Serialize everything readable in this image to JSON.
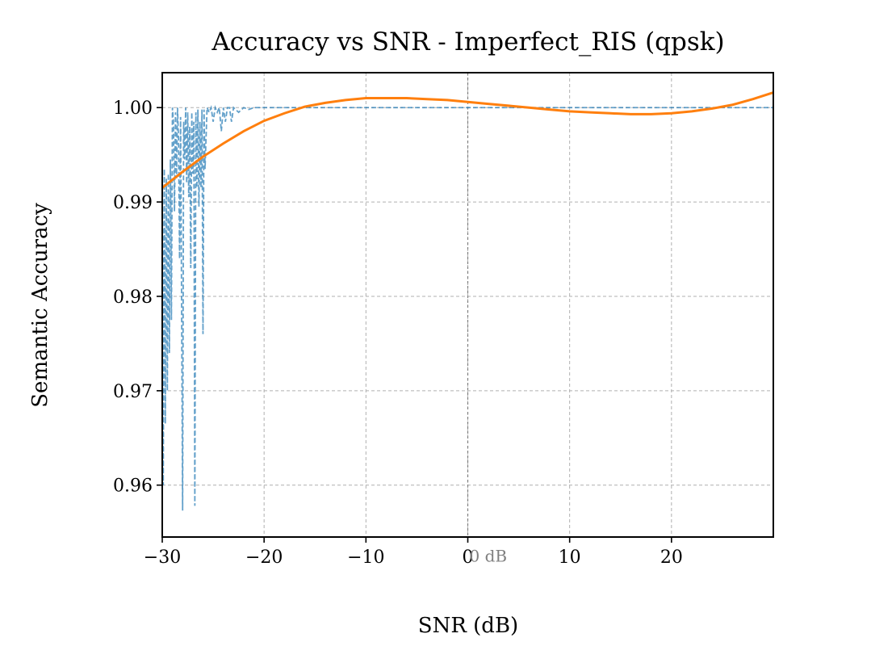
{
  "chart_data": {
    "type": "line",
    "title": "Accuracy vs SNR - Imperfect_RIS (qpsk)",
    "xlabel": "SNR (dB)",
    "ylabel": "Semantic Accuracy",
    "xlim": [
      -30,
      30
    ],
    "ylim": [
      0.9545,
      1.0037
    ],
    "x_ticks": [
      -30,
      -20,
      -10,
      0,
      10,
      20
    ],
    "x_tick_labels": [
      "−30",
      "−20",
      "−10",
      "0",
      "10",
      "20"
    ],
    "y_ticks": [
      0.96,
      0.97,
      0.98,
      0.99,
      1.0
    ],
    "y_tick_labels": [
      "0.96",
      "0.97",
      "0.98",
      "0.99",
      "1.00"
    ],
    "grid": true,
    "annotations": [
      {
        "text": "0 dB",
        "x": 0,
        "y": 0.9553
      }
    ],
    "vline": {
      "x": 0,
      "color": "#808080"
    },
    "colors": {
      "raw": "#1f77b4",
      "fit": "#ff7f0e"
    },
    "series": [
      {
        "style": "dashed",
        "color": "#1f77b4",
        "x": [
          -30,
          -29.9,
          -29.8,
          -29.7,
          -29.6,
          -29.5,
          -29.4,
          -29.3,
          -29.2,
          -29.1,
          -29.0,
          -28.9,
          -28.8,
          -28.7,
          -28.6,
          -28.5,
          -28.4,
          -28.3,
          -28.2,
          -28.1,
          -28.0,
          -27.9,
          -27.8,
          -27.7,
          -27.6,
          -27.5,
          -27.4,
          -27.3,
          -27.2,
          -27.1,
          -27.0,
          -26.9,
          -26.8,
          -26.7,
          -26.6,
          -26.5,
          -26.4,
          -26.3,
          -26.2,
          -26.1,
          -26.0,
          -25.9,
          -25.8,
          -25.6,
          -25.4,
          -25.2,
          -25.0,
          -24.8,
          -24.6,
          -24.4,
          -24.2,
          -24.0,
          -23.8,
          -23.6,
          -23.4,
          -23.2,
          -23.0,
          -22.5,
          -22.0,
          -21.5,
          -21.0,
          -20.5,
          -20.0,
          -15.0,
          -10.0,
          -5.0,
          0.0,
          5.0,
          10.0,
          15.0,
          20.0,
          25.0,
          30.0
        ],
        "y": [
          0.9965,
          0.96,
          0.9935,
          0.9665,
          0.9925,
          0.97,
          0.993,
          0.974,
          0.9945,
          0.9775,
          1.0,
          0.9985,
          0.989,
          0.9995,
          0.9925,
          1.0,
          0.9965,
          0.984,
          0.999,
          0.9795,
          0.9573,
          0.9985,
          0.9945,
          1.0,
          0.992,
          0.9995,
          0.9905,
          0.998,
          0.983,
          0.9995,
          0.993,
          0.9985,
          0.9578,
          0.9995,
          0.9915,
          0.9998,
          0.9895,
          0.9985,
          0.9915,
          0.9998,
          0.976,
          0.9998,
          0.9935,
          1.0,
          0.9995,
          1.0,
          0.9985,
          1.0,
          0.9995,
          1.0,
          0.9975,
          1.0,
          0.9985,
          1.0,
          1.0,
          0.9985,
          1.0,
          0.9995,
          1.0,
          0.9998,
          1.0,
          1.0,
          1.0,
          1.0,
          1.0,
          1.0,
          1.0,
          1.0,
          1.0,
          1.0,
          1.0,
          1.0,
          1.0
        ]
      },
      {
        "style": "solid",
        "color": "#ff7f0e",
        "x": [
          -30,
          -28,
          -26,
          -24,
          -22,
          -20,
          -18,
          -16,
          -14,
          -12,
          -10,
          -8,
          -6,
          -4,
          -2,
          0,
          2,
          4,
          6,
          8,
          10,
          12,
          14,
          16,
          18,
          20,
          22,
          24,
          26,
          28,
          30
        ],
        "y": [
          0.9915,
          0.9932,
          0.9948,
          0.9962,
          0.9975,
          0.9986,
          0.9994,
          1.0001,
          1.0005,
          1.0008,
          1.001,
          1.001,
          1.001,
          1.0009,
          1.0008,
          1.0006,
          1.0004,
          1.0002,
          1.0,
          0.9998,
          0.9996,
          0.9995,
          0.9994,
          0.9993,
          0.9993,
          0.9994,
          0.9996,
          0.9999,
          1.0003,
          1.0009,
          1.0016
        ]
      }
    ]
  }
}
